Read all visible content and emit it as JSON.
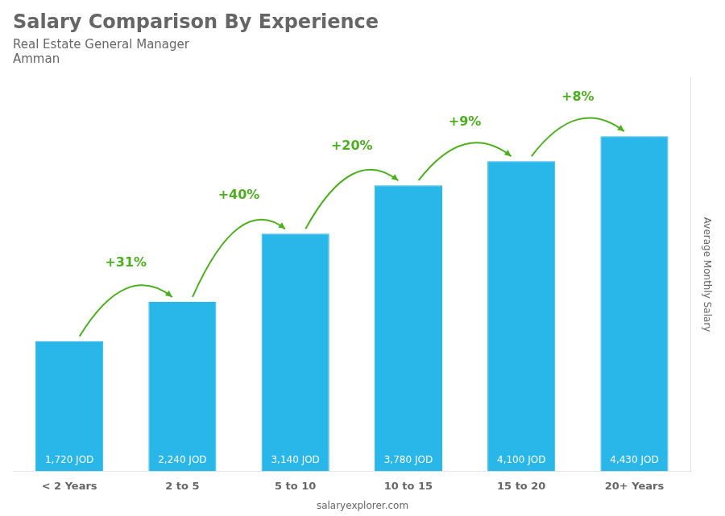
{
  "chart_data": {
    "type": "bar",
    "title": "Salary Comparison By Experience",
    "subtitle": [
      "Real Estate General Manager",
      "Amman"
    ],
    "y_label": "Average Monthly Salary",
    "categories": [
      "< 2 Years",
      "2 to 5",
      "5 to 10",
      "10 to 15",
      "15 to 20",
      "20+ Years"
    ],
    "values": [
      1720,
      2240,
      3140,
      3780,
      4100,
      4430
    ],
    "value_labels": [
      "1,720 JOD",
      "2,240 JOD",
      "3,140 JOD",
      "3,780 JOD",
      "4,100 JOD",
      "4,430 JOD"
    ],
    "data_labels": true,
    "annotations": [
      "+31%",
      "+40%",
      "+20%",
      "+9%",
      "+8%",
      "salaryexplorer.com"
    ],
    "color": "#29b6e8",
    "ylim": [
      0,
      5200
    ],
    "tick_labels": "x",
    "grid": false
  }
}
